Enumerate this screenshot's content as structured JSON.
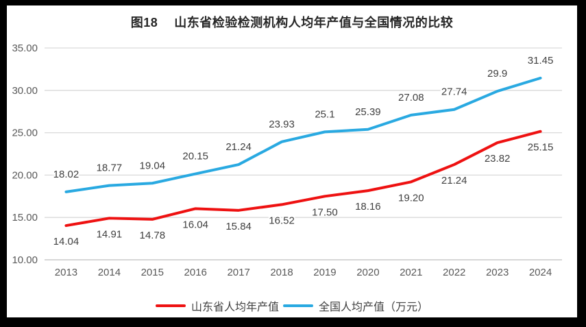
{
  "colors": {
    "background": "#ffffff",
    "frame": "#000000",
    "gridline": "#d9d9d9",
    "axis_line": "#bfbfbf",
    "tick_text": "#595959",
    "data_label_text": "#404040",
    "title_text": "#262626",
    "shandong_red": "#ee1111",
    "national_blue": "#29a9e1"
  },
  "chart_data": {
    "type": "line",
    "title": "图18　 山东省检验检测机构人均年产值与全国情况的比较",
    "categories": [
      "2013",
      "2014",
      "2015",
      "2016",
      "2017",
      "2018",
      "2019",
      "2020",
      "2021",
      "2022",
      "2023",
      "2024"
    ],
    "series": [
      {
        "name": "山东省人均年产值",
        "color": "#ee1111",
        "values": [
          14.04,
          14.91,
          14.78,
          16.04,
          15.84,
          16.52,
          17.5,
          18.16,
          19.2,
          21.24,
          23.82,
          25.15
        ],
        "labels": [
          "14.04",
          "14.91",
          "14.78",
          "16.04",
          "15.84",
          "16.52",
          "17.50",
          "18.16",
          "19.20",
          "21.24",
          "23.82",
          "25.15"
        ],
        "label_side": "below"
      },
      {
        "name": "全国人均产值（万元）",
        "color": "#29a9e1",
        "values": [
          18.02,
          18.77,
          19.04,
          20.15,
          21.24,
          23.93,
          25.1,
          25.39,
          27.08,
          27.74,
          29.9,
          31.45
        ],
        "labels": [
          "18.02",
          "18.77",
          "19.04",
          "20.15",
          "21.24",
          "23.93",
          "25.1",
          "25.39",
          "27.08",
          "27.74",
          "29.9",
          "31.45"
        ],
        "label_side": "above"
      }
    ],
    "ylim": [
      10,
      35
    ],
    "y_ticks": [
      "10.00",
      "15.00",
      "20.00",
      "25.00",
      "30.00",
      "35.00"
    ],
    "xlabel": "",
    "ylabel": "",
    "grid": true,
    "legend_position": "bottom"
  }
}
